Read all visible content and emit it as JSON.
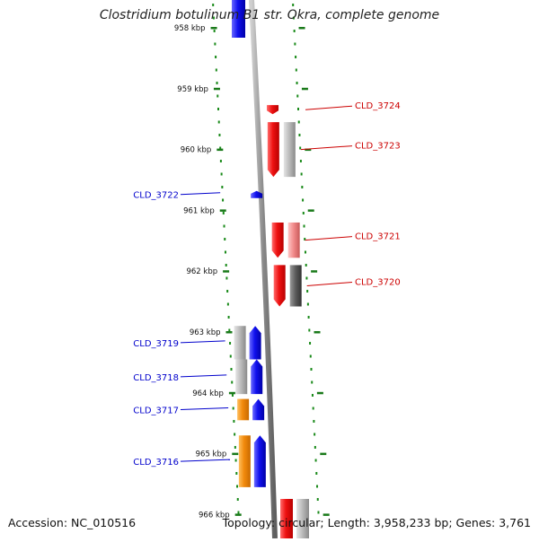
{
  "title": "Clostridium botulinum B1 str. Okra, complete genome",
  "footer": {
    "accession": "Accession: NC_010516",
    "summary": "Topology: circular; Length: 3,958,233 bp; Genes: 3,761"
  },
  "colors": {
    "forward_gene": "#e8141e",
    "reverse_gene": "#1414e6",
    "pseudo_gene": "#f28a0c",
    "gray_feature": "#b4b4b4",
    "dark_feature": "#5a5a5a",
    "tick_green": "#1a7a1a",
    "label_red": "#cc0000",
    "label_blue": "#0000cc"
  },
  "scale": {
    "unit": "kbp",
    "ticks": [
      {
        "kbp": 958,
        "label": "958 kbp"
      },
      {
        "kbp": 959,
        "label": "959 kbp"
      },
      {
        "kbp": 960,
        "label": "960 kbp"
      },
      {
        "kbp": 961,
        "label": "961 kbp"
      },
      {
        "kbp": 962,
        "label": "962 kbp"
      },
      {
        "kbp": 963,
        "label": "963 kbp"
      },
      {
        "kbp": 964,
        "label": "964 kbp"
      },
      {
        "kbp": 965,
        "label": "965 kbp"
      },
      {
        "kbp": 966,
        "label": "966 kbp"
      }
    ]
  },
  "genes": [
    {
      "label": "CLD_3724",
      "strand": "forward",
      "start_kbp": 959.27,
      "end_kbp": 959.42,
      "paired": "none",
      "label_side": "right"
    },
    {
      "label": "CLD_3723",
      "strand": "forward",
      "start_kbp": 959.55,
      "end_kbp": 960.45,
      "paired": "gray",
      "label_side": "right"
    },
    {
      "label": "CLD_3722",
      "strand": "reverse",
      "start_kbp": 960.68,
      "end_kbp": 960.78,
      "paired": "none",
      "label_side": "left"
    },
    {
      "label": "CLD_3721",
      "strand": "forward",
      "start_kbp": 961.2,
      "end_kbp": 961.78,
      "paired": "pink",
      "label_side": "right"
    },
    {
      "label": "CLD_3720",
      "strand": "forward",
      "start_kbp": 961.9,
      "end_kbp": 962.58,
      "paired": "dark",
      "label_side": "right"
    },
    {
      "label": "CLD_3719",
      "strand": "reverse",
      "start_kbp": 962.9,
      "end_kbp": 963.45,
      "paired": "gray",
      "label_side": "left"
    },
    {
      "label": "CLD_3718",
      "strand": "reverse",
      "start_kbp": 963.45,
      "end_kbp": 964.02,
      "paired": "gray",
      "label_side": "left"
    },
    {
      "label": "CLD_3717",
      "strand": "reverse",
      "start_kbp": 964.1,
      "end_kbp": 964.45,
      "paired": "orange",
      "label_side": "left"
    },
    {
      "label": "CLD_3716",
      "strand": "reverse",
      "start_kbp": 964.7,
      "end_kbp": 965.55,
      "paired": "orange",
      "label_side": "left"
    }
  ]
}
